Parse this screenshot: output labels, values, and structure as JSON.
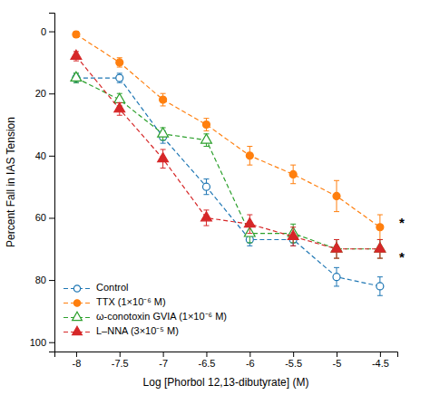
{
  "chart_data": {
    "type": "line",
    "xlabel": "Log [Phorbol 12,13-dibutyrate] (M)",
    "ylabel": "Percent Fall in IAS Tension",
    "x": [
      -8,
      -7.5,
      -7,
      -6.5,
      -6,
      -5.5,
      -5,
      -4.5
    ],
    "xlim": [
      -8.25,
      -4.3
    ],
    "xticks": [
      -8,
      -7.5,
      -7,
      -6.5,
      -6,
      -5.5,
      -5,
      -4.5
    ],
    "ylim": [
      103,
      -6
    ],
    "yticks": [
      0,
      20,
      40,
      60,
      80,
      100
    ],
    "legend": "lower left",
    "series": [
      {
        "name": "Control",
        "marker": "open-circle",
        "line_style": "dashed",
        "values": [
          15,
          15,
          34,
          50,
          67,
          67,
          79,
          82
        ],
        "errors": [
          1.5,
          1.5,
          2,
          2.5,
          2,
          2,
          3,
          3
        ]
      },
      {
        "name": "TTX (1×10⁻⁶ M)",
        "marker": "circle",
        "line_style": "dashed",
        "values": [
          1,
          10,
          22,
          30,
          40,
          46,
          53,
          63
        ],
        "errors": [
          1,
          1.5,
          2,
          2,
          3,
          3,
          5,
          4
        ]
      },
      {
        "name": "ω-conotoxin GVIA (1×10⁻⁶ M)",
        "marker": "open-triangle",
        "line_style": "dashed",
        "values": [
          15,
          22,
          33,
          35,
          65,
          65,
          70,
          70
        ],
        "errors": [
          1.5,
          2,
          2,
          2,
          3,
          3,
          3,
          3
        ]
      },
      {
        "name": "L–NNA (3×10⁻⁵ M)",
        "marker": "triangle",
        "line_style": "dashed",
        "values": [
          8,
          25,
          41,
          60,
          62,
          66,
          70,
          70
        ],
        "errors": [
          1.5,
          2,
          3,
          2.5,
          3,
          3,
          3,
          3
        ]
      }
    ],
    "annotations": [
      {
        "text": "*",
        "x": -4.28,
        "y": 62
      },
      {
        "text": "*",
        "x": -4.28,
        "y": 73
      }
    ]
  }
}
